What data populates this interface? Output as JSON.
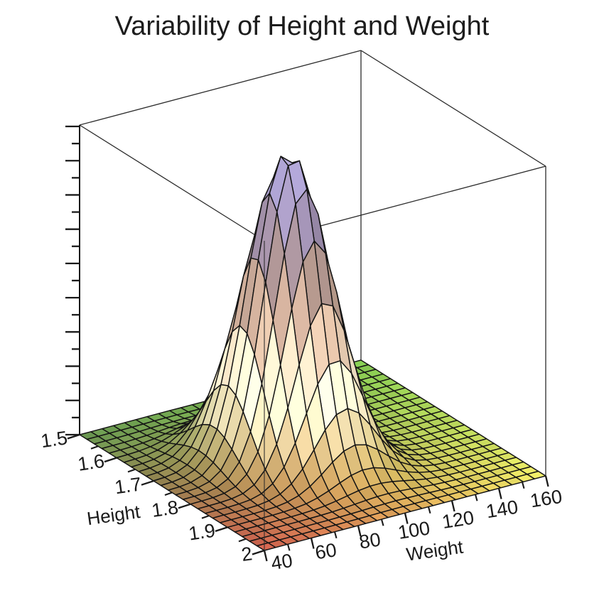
{
  "page": {
    "background": "#ffffff"
  },
  "chart_data": {
    "type": "surface",
    "title": "Variability of Height and Weight",
    "x_axis": {
      "label": "Weight",
      "min": 40,
      "max": 160,
      "major_ticks": [
        "40",
        "60",
        "80",
        "100",
        "120",
        "140",
        "160"
      ],
      "minor_tick_step": 10
    },
    "y_axis": {
      "label": "Height",
      "min": 1.5,
      "max": 2.0,
      "major_ticks": [
        "1.5",
        "1.6",
        "1.7",
        "1.8",
        "1.9",
        "2"
      ],
      "minor_tick_step": 0.05
    },
    "z_axis": {
      "label": "",
      "min": 0,
      "max": 1,
      "tick_labels_visible": false,
      "tick_count": 19
    },
    "surface": {
      "function": "bivariate_normal_density",
      "mean": {
        "weight": 90,
        "height": 1.75
      },
      "sd": {
        "weight": 13,
        "height": 0.065
      },
      "correlation": 0.3,
      "peak_z": 1.0,
      "mesh_cells": 25
    },
    "palette": {
      "mesh_line": "#141414",
      "box_line": "#2b2b2b",
      "axis_color": "#1a1a1a",
      "base_corner_colors": {
        "h1_5_w40": "#65934e",
        "h1_5_w160": "#7dc24e",
        "h2_w40": "#c95c4b",
        "h2_w160": "#e4e162"
      },
      "height_color_stops": [
        [
          0.3,
          "#f6ebcd"
        ],
        [
          0.48,
          "#cfae97"
        ],
        [
          0.62,
          "#a68c82"
        ],
        [
          0.78,
          "#91829f"
        ],
        [
          0.9,
          "#9e94c0"
        ],
        [
          1.0,
          "#b3aad6"
        ]
      ]
    },
    "grid": "boxed"
  }
}
